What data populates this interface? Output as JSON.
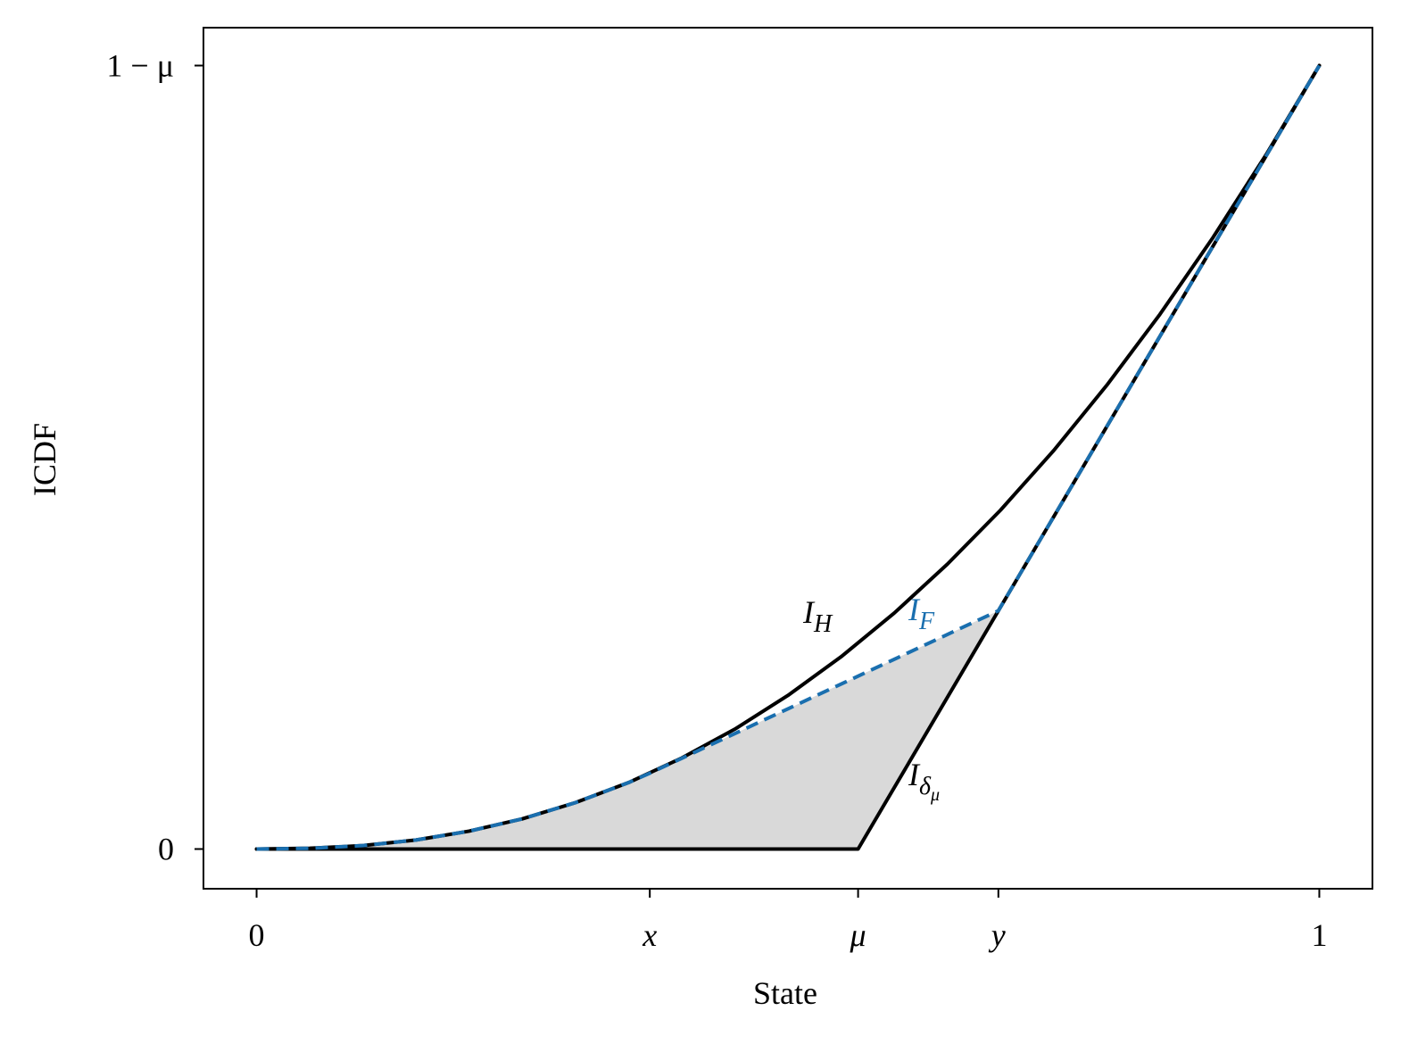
{
  "chart_data": {
    "type": "line",
    "xlabel": "State",
    "ylabel": "ICDF",
    "xlim": [
      -0.05,
      1.05
    ],
    "ylim": [
      -0.022,
      0.455
    ],
    "xticks": [
      0,
      {
        "value": 0.37,
        "label": "x"
      },
      {
        "value": 0.566,
        "label": "μ"
      },
      {
        "value": 0.698,
        "label": "y"
      },
      1
    ],
    "yticks": [
      0,
      {
        "value": 0.434,
        "label": "1 − μ"
      }
    ],
    "shade_color": "#d9d9d9",
    "series": [
      {
        "color": "#000000",
        "dash": false,
        "x": [
          0,
          0.05,
          0.1,
          0.15,
          0.2,
          0.25,
          0.3,
          0.35,
          0.4,
          0.45,
          0.5,
          0.55,
          0.6,
          0.65,
          0.7,
          0.75,
          0.8,
          0.85,
          0.9,
          0.95,
          1
        ],
        "values": [
          0,
          0.0004,
          0.0019,
          0.005,
          0.0099,
          0.0167,
          0.0257,
          0.0368,
          0.0504,
          0.0664,
          0.0851,
          0.1065,
          0.1307,
          0.1578,
          0.1877,
          0.2207,
          0.2569,
          0.2962,
          0.3388,
          0.3847,
          0.434
        ]
      },
      {
        "color": "#000000",
        "dash": false,
        "x": [
          0,
          0.566,
          1
        ],
        "values": [
          0,
          0,
          0.434
        ]
      },
      {
        "color": "#1a6faf",
        "dash": true,
        "x": [
          0,
          0.05,
          0.1,
          0.15,
          0.2,
          0.25,
          0.3,
          0.35,
          0.37,
          0.698,
          1
        ],
        "values": [
          0,
          0.0004,
          0.0019,
          0.005,
          0.0099,
          0.0167,
          0.0257,
          0.0368,
          0.042,
          0.132,
          0.434
        ]
      }
    ],
    "annotations": [
      {
        "text": "I",
        "sub": "H",
        "color": "#000000"
      },
      {
        "text": "I",
        "sub": "F",
        "color": "#1a6faf"
      },
      {
        "text": "I",
        "sub": "δ",
        "subsub": "μ",
        "color": "#000000"
      }
    ]
  }
}
